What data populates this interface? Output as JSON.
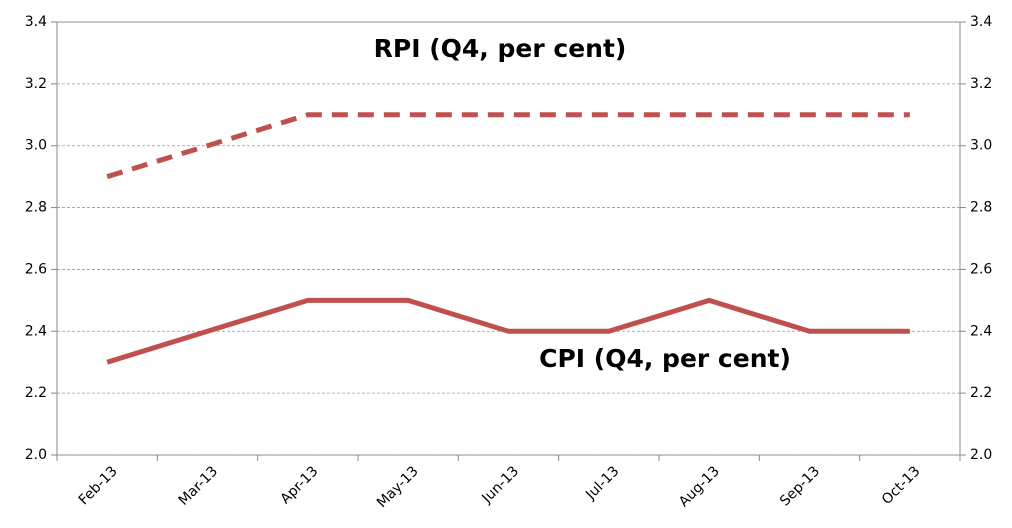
{
  "chart_data": {
    "type": "line",
    "categories": [
      "Feb-13",
      "Mar-13",
      "Apr-13",
      "May-13",
      "Jun-13",
      "Jul-13",
      "Aug-13",
      "Sep-13",
      "Oct-13"
    ],
    "series": [
      {
        "name": "RPI (Q4, per cent)",
        "color": "#c0504d",
        "line_style": "dashed",
        "values": [
          2.9,
          3.0,
          3.1,
          3.1,
          3.1,
          3.1,
          3.1,
          3.1,
          3.1
        ]
      },
      {
        "name": "CPI (Q4, per cent)",
        "color": "#c0504d",
        "line_style": "solid",
        "values": [
          2.3,
          2.4,
          2.5,
          2.5,
          2.4,
          2.4,
          2.5,
          2.4,
          2.4
        ]
      }
    ],
    "ylim": [
      2.0,
      3.4
    ],
    "yticks": [
      {
        "value": 2,
        "label": "2.0"
      },
      2.2,
      2.4,
      2.6,
      2.8,
      {
        "value": 3,
        "label": "3.0"
      },
      3.2,
      3.4
    ],
    "y2lim": [
      2.0,
      3.4
    ],
    "y2ticks": [
      {
        "value": 2,
        "label": "2.0"
      },
      2.2,
      2.4,
      2.6,
      2.8,
      {
        "value": 3,
        "label": "3.0"
      },
      3.2,
      3.4
    ],
    "grid": true
  }
}
